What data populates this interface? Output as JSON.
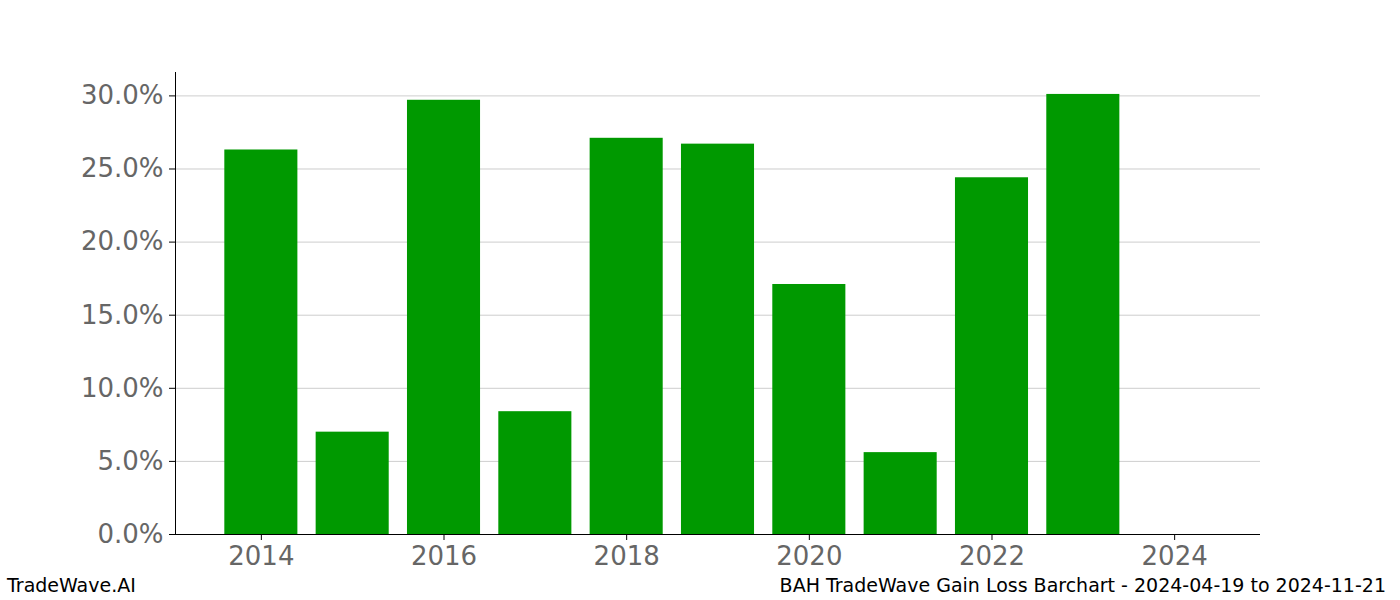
{
  "chart_data": {
    "type": "bar",
    "title": "BAH TradeWave Gain Loss Barchart - 2024-04-19 to 2024-11-21",
    "source": "TradeWave.AI",
    "x": [
      2014,
      2015,
      2016,
      2017,
      2018,
      2019,
      2020,
      2021,
      2022,
      2023,
      2024
    ],
    "values": [
      26.3,
      7.0,
      29.7,
      8.4,
      27.1,
      26.7,
      17.1,
      5.6,
      24.4,
      30.1,
      0
    ],
    "color": "#009900",
    "xlim": [
      2013.06,
      2024.94
    ],
    "xticks": [
      2014,
      2016,
      2018,
      2020,
      2022,
      2024
    ],
    "ylim": [
      0,
      31.6
    ],
    "yticks": [
      {
        "value": 0,
        "label": "0.0%"
      },
      {
        "value": 5,
        "label": "5.0%"
      },
      {
        "value": 10,
        "label": "10.0%"
      },
      {
        "value": 15,
        "label": "15.0%"
      },
      {
        "value": 20,
        "label": "20.0%"
      },
      {
        "value": 25,
        "label": "25.0%"
      },
      {
        "value": 30,
        "label": "30.0%"
      }
    ],
    "grid": true
  }
}
